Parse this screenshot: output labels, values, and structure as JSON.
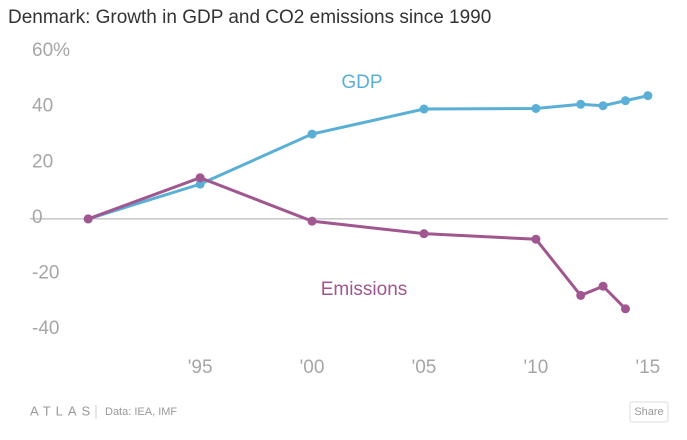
{
  "chart_data": {
    "type": "line",
    "title": "Denmark: Growth in GDP and CO2 emissions since 1990",
    "x": [
      1990,
      1995,
      2000,
      2005,
      2010,
      2012,
      2013,
      2014,
      2015
    ],
    "series": [
      {
        "name": "GDP",
        "color": "#5aafd6",
        "values": [
          0,
          12.5,
          30.5,
          39.5,
          39.7,
          41.2,
          40.7,
          42.5,
          44.3
        ]
      },
      {
        "name": "Emissions",
        "color": "#a0568e",
        "values": [
          0,
          14.8,
          -0.8,
          -5.3,
          -7.3,
          -27.5,
          -24.2,
          -32.3,
          null
        ]
      }
    ],
    "xlim": [
      1987.4,
      2015.9
    ],
    "xticks": [
      {
        "value": 1995,
        "label": "'95"
      },
      {
        "value": 2000,
        "label": "'00"
      },
      {
        "value": 2005,
        "label": "'05"
      },
      {
        "value": 2010,
        "label": "'10"
      },
      {
        "value": 2015,
        "label": "'15"
      }
    ],
    "ylim": [
      -50,
      60
    ],
    "yticks": [
      {
        "value": 60,
        "label": "60%"
      },
      40,
      20,
      0,
      -20,
      -40
    ],
    "grid": "zero-line"
  },
  "footer": {
    "brand": "ATLAS",
    "source": "Data: IEA, IMF",
    "share": "Share"
  }
}
